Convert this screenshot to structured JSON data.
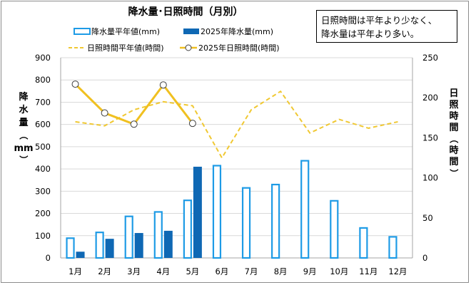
{
  "chart_data": {
    "type": "bar+line",
    "title": "降水量･日照時間（月別）",
    "note": [
      "日照時間は平年より少なく、",
      "降水量は平年より多い。"
    ],
    "categories": [
      "1月",
      "2月",
      "3月",
      "4月",
      "5月",
      "6月",
      "7月",
      "8月",
      "9月",
      "10月",
      "11月",
      "12月"
    ],
    "y_left": {
      "label_chars": [
        "降",
        "水",
        "量",
        "（",
        "mm",
        "）"
      ],
      "ylim": [
        0,
        900
      ],
      "ticks": [
        "0",
        "100",
        "200",
        "300",
        "400",
        "500",
        "600",
        "700",
        "800",
        "900"
      ]
    },
    "y_right": {
      "label_chars": [
        "日",
        "照",
        "時",
        "間",
        "（",
        "時",
        "間",
        "）"
      ],
      "ylim": [
        0,
        250
      ],
      "ticks": [
        "0",
        "50",
        "100",
        "150",
        "200",
        "250"
      ]
    },
    "grid": true,
    "legend": {
      "position": "top",
      "items": {
        "precip_normal": "降水量平年値(mm)",
        "precip_2025": "2025年降水量(mm)",
        "sun_normal": "日照時間平年値(時間)",
        "sun_2025": "2025年日照時間(時間)"
      }
    },
    "series": [
      {
        "key": "precip_normal",
        "kind": "bar-outline",
        "axis": "left",
        "color": "#1e9be6",
        "values": [
          92,
          118,
          190,
          210,
          262,
          418,
          318,
          333,
          440,
          260,
          138,
          98
        ]
      },
      {
        "key": "precip_2025",
        "kind": "bar",
        "axis": "left",
        "color": "#0f68b4",
        "values": [
          28,
          86,
          112,
          122,
          410,
          null,
          null,
          null,
          null,
          null,
          null,
          null
        ]
      },
      {
        "key": "sun_normal",
        "kind": "line-dashed",
        "axis": "right",
        "color": "#f0c832",
        "values": [
          170,
          165,
          185,
          195,
          190,
          125,
          185,
          208,
          156,
          173,
          162,
          170
        ]
      },
      {
        "key": "sun_2025",
        "kind": "line-marker",
        "axis": "right",
        "color": "#f0c020",
        "values": [
          217,
          181,
          167,
          216,
          168,
          null,
          null,
          null,
          null,
          null,
          null,
          null
        ]
      }
    ],
    "colors": {
      "gridline": "#d9d9d9",
      "axis": "#a6a6a6"
    }
  }
}
